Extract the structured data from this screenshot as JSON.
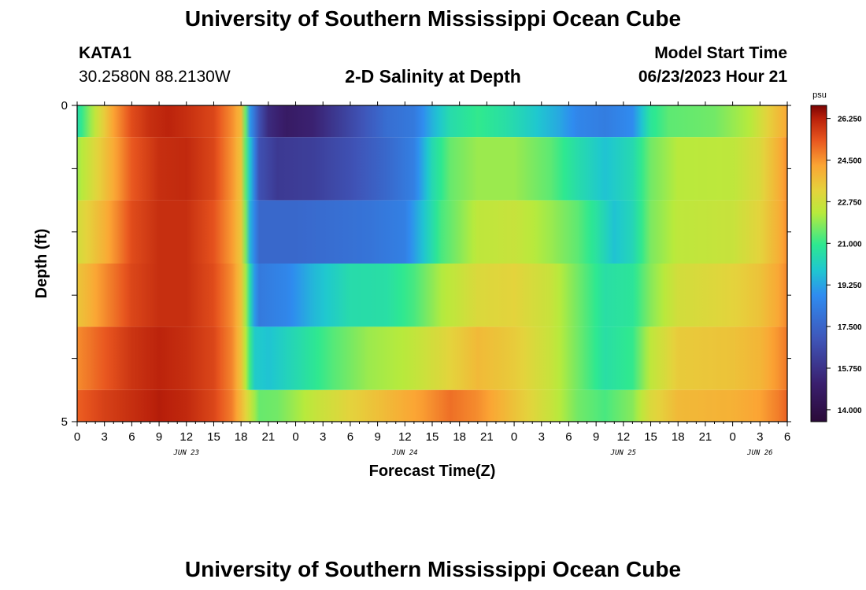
{
  "header": {
    "title": "University of Southern Mississippi Ocean Cube",
    "station_id": "KATA1",
    "coords": "30.2580N  88.2130W",
    "start_label": "Model Start Time",
    "start_value": "06/23/2023 Hour 21"
  },
  "footer": {
    "title": "University of Southern Mississippi Ocean Cube"
  },
  "chart_data": {
    "type": "heatmap",
    "title": "2-D Salinity at Depth",
    "xlabel": "Forecast Time(Z)",
    "ylabel": "Depth (ft)",
    "ylim": [
      0,
      5
    ],
    "y_tick_labels": [
      "0",
      "5"
    ],
    "x_tick_labels": [
      "0",
      "3",
      "6",
      "9",
      "12",
      "15",
      "18",
      "21",
      "0",
      "3",
      "6",
      "9",
      "12",
      "15",
      "18",
      "21",
      "0",
      "3",
      "6",
      "9",
      "12",
      "15",
      "18",
      "21",
      "0",
      "3",
      "6"
    ],
    "date_labels": [
      {
        "text": "JUN 23",
        "hour": 12
      },
      {
        "text": "JUN 24",
        "hour": 36
      },
      {
        "text": "JUN 25",
        "hour": 60
      },
      {
        "text": "JUN 26",
        "hour": 75
      }
    ],
    "x_hours_range": [
      0,
      78
    ],
    "colorbar": {
      "unit": "psu",
      "range": [
        13.5,
        26.8
      ],
      "labels": [
        "26.250",
        "24.500",
        "22.750",
        "21.000",
        "19.250",
        "17.500",
        "15.750",
        "14.000"
      ]
    },
    "layers": [
      {
        "depth_range": [
          0,
          0.5
        ],
        "points": [
          [
            0,
            20.5
          ],
          [
            2,
            22.5
          ],
          [
            4,
            24.3
          ],
          [
            6,
            25.5
          ],
          [
            8,
            26.0
          ],
          [
            10,
            26.2
          ],
          [
            12,
            26.0
          ],
          [
            15,
            25.6
          ],
          [
            17,
            24.6
          ],
          [
            18,
            23.8
          ],
          [
            18.5,
            21.5
          ],
          [
            19,
            19.0
          ],
          [
            20,
            16.8
          ],
          [
            21,
            15.5
          ],
          [
            23,
            14.8
          ],
          [
            26,
            15.2
          ],
          [
            30,
            16.5
          ],
          [
            34,
            17.8
          ],
          [
            37,
            18.2
          ],
          [
            39,
            19.5
          ],
          [
            41,
            20.5
          ],
          [
            44,
            21.0
          ],
          [
            47,
            20.6
          ],
          [
            50,
            20.0
          ],
          [
            53,
            19.3
          ],
          [
            55,
            18.6
          ],
          [
            58,
            18.3
          ],
          [
            61,
            18.8
          ],
          [
            63,
            20.8
          ],
          [
            65,
            21.4
          ],
          [
            70,
            21.6
          ],
          [
            74,
            22.3
          ],
          [
            76,
            23.3
          ],
          [
            78,
            24.2
          ]
        ]
      },
      {
        "depth_range": [
          0.5,
          1.5
        ],
        "points": [
          [
            0,
            22.0
          ],
          [
            3,
            23.6
          ],
          [
            6,
            25.3
          ],
          [
            9,
            26.0
          ],
          [
            12,
            26.1
          ],
          [
            15,
            25.6
          ],
          [
            17,
            24.5
          ],
          [
            18,
            23.6
          ],
          [
            18.6,
            21.0
          ],
          [
            19,
            19.8
          ],
          [
            20,
            16.8
          ],
          [
            22,
            16.0
          ],
          [
            26,
            16.2
          ],
          [
            30,
            16.8
          ],
          [
            34,
            17.6
          ],
          [
            37,
            18.4
          ],
          [
            39,
            20.4
          ],
          [
            41,
            21.5
          ],
          [
            44,
            22.0
          ],
          [
            48,
            22.0
          ],
          [
            52,
            21.4
          ],
          [
            55,
            20.5
          ],
          [
            58,
            19.8
          ],
          [
            61,
            20.4
          ],
          [
            63,
            21.6
          ],
          [
            66,
            22.3
          ],
          [
            72,
            22.4
          ],
          [
            75,
            23.0
          ],
          [
            77,
            24.0
          ],
          [
            78,
            24.6
          ]
        ]
      },
      {
        "depth_range": [
          1.5,
          2.5
        ],
        "points": [
          [
            0,
            22.8
          ],
          [
            3,
            24.0
          ],
          [
            6,
            25.5
          ],
          [
            9,
            26.0
          ],
          [
            12,
            26.0
          ],
          [
            15,
            25.4
          ],
          [
            17,
            24.4
          ],
          [
            18,
            23.5
          ],
          [
            18.7,
            21.0
          ],
          [
            19,
            19.5
          ],
          [
            20,
            17.6
          ],
          [
            24,
            17.6
          ],
          [
            28,
            17.8
          ],
          [
            32,
            18.0
          ],
          [
            36,
            18.4
          ],
          [
            38,
            19.8
          ],
          [
            40,
            21.2
          ],
          [
            44,
            22.4
          ],
          [
            48,
            22.6
          ],
          [
            52,
            22.0
          ],
          [
            55,
            21.4
          ],
          [
            57,
            20.7
          ],
          [
            59,
            19.8
          ],
          [
            61,
            20.3
          ],
          [
            63,
            21.7
          ],
          [
            66,
            22.4
          ],
          [
            72,
            22.6
          ],
          [
            75,
            23.2
          ],
          [
            77,
            24.0
          ],
          [
            78,
            24.6
          ]
        ]
      },
      {
        "depth_range": [
          2.5,
          3.5
        ],
        "points": [
          [
            0,
            23.5
          ],
          [
            3,
            24.6
          ],
          [
            6,
            25.6
          ],
          [
            9,
            26.0
          ],
          [
            12,
            26.0
          ],
          [
            15,
            25.5
          ],
          [
            17,
            24.6
          ],
          [
            18,
            23.6
          ],
          [
            18.8,
            21.2
          ],
          [
            19.3,
            19.4
          ],
          [
            20,
            18.2
          ],
          [
            23,
            18.6
          ],
          [
            26,
            19.6
          ],
          [
            30,
            20.5
          ],
          [
            34,
            20.6
          ],
          [
            37,
            21.2
          ],
          [
            40,
            22.2
          ],
          [
            44,
            23.0
          ],
          [
            48,
            23.2
          ],
          [
            52,
            22.6
          ],
          [
            55,
            21.6
          ],
          [
            58,
            20.6
          ],
          [
            61,
            20.8
          ],
          [
            63,
            21.8
          ],
          [
            66,
            22.8
          ],
          [
            72,
            23.2
          ],
          [
            75,
            23.6
          ],
          [
            77,
            24.2
          ],
          [
            78,
            24.7
          ]
        ]
      },
      {
        "depth_range": [
          3.5,
          4.5
        ],
        "points": [
          [
            0,
            24.6
          ],
          [
            3,
            25.3
          ],
          [
            6,
            25.9
          ],
          [
            9,
            26.2
          ],
          [
            12,
            26.0
          ],
          [
            15,
            25.6
          ],
          [
            17,
            24.7
          ],
          [
            18,
            23.6
          ],
          [
            18.8,
            21.5
          ],
          [
            19.5,
            20.0
          ],
          [
            21,
            19.8
          ],
          [
            24,
            20.4
          ],
          [
            28,
            21.3
          ],
          [
            32,
            22.0
          ],
          [
            36,
            22.3
          ],
          [
            40,
            23.0
          ],
          [
            44,
            23.8
          ],
          [
            48,
            23.4
          ],
          [
            52,
            22.6
          ],
          [
            55,
            21.6
          ],
          [
            58,
            20.6
          ],
          [
            61,
            21.0
          ],
          [
            63,
            22.4
          ],
          [
            66,
            23.4
          ],
          [
            72,
            23.6
          ],
          [
            75,
            23.9
          ],
          [
            77,
            24.5
          ],
          [
            78,
            24.9
          ]
        ]
      },
      {
        "depth_range": [
          4.5,
          5
        ],
        "points": [
          [
            0,
            25.2
          ],
          [
            3,
            25.7
          ],
          [
            6,
            26.0
          ],
          [
            9,
            26.3
          ],
          [
            12,
            26.1
          ],
          [
            15,
            25.6
          ],
          [
            17,
            24.8
          ],
          [
            18,
            23.8
          ],
          [
            19,
            22.6
          ],
          [
            20,
            21.5
          ],
          [
            22,
            21.6
          ],
          [
            26,
            22.5
          ],
          [
            30,
            23.2
          ],
          [
            34,
            23.8
          ],
          [
            38,
            24.4
          ],
          [
            41,
            25.0
          ],
          [
            44,
            24.6
          ],
          [
            48,
            23.6
          ],
          [
            52,
            22.6
          ],
          [
            55,
            21.6
          ],
          [
            58,
            21.2
          ],
          [
            61,
            21.8
          ],
          [
            63,
            23.0
          ],
          [
            66,
            23.8
          ],
          [
            72,
            24.0
          ],
          [
            75,
            24.3
          ],
          [
            77,
            24.8
          ],
          [
            78,
            25.2
          ]
        ]
      }
    ]
  }
}
